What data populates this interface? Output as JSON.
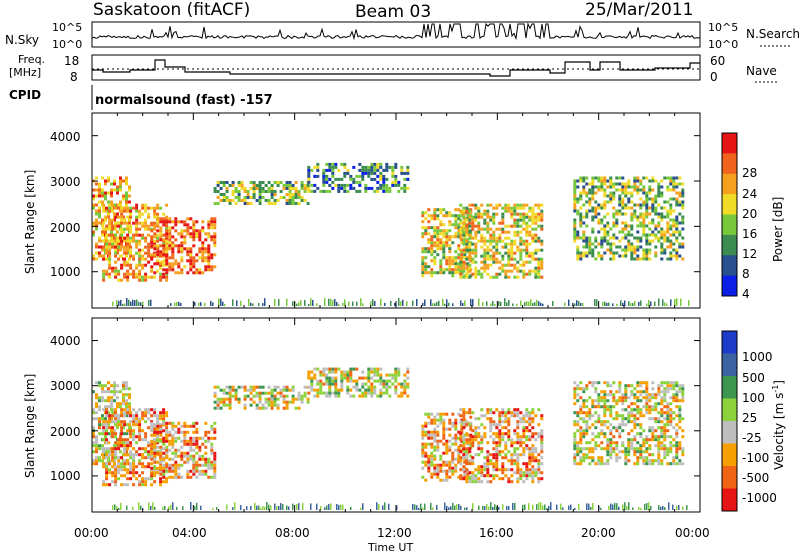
{
  "header": {
    "station": "Saskatoon (fitACF)",
    "beam": "Beam 03",
    "date": "25/Mar/2011"
  },
  "noise_panel": {
    "left_label": "N.Sky",
    "right_label": "N.Search",
    "left_ticks": [
      "10^5",
      "10^0"
    ],
    "right_ticks": [
      "10^5",
      "10^0"
    ]
  },
  "freq_panel": {
    "left_label_1": "Freq.",
    "left_label_2": "[MHz]",
    "right_label": "Nave",
    "left_ticks": [
      "18",
      "8"
    ],
    "right_ticks": [
      "60",
      "0"
    ]
  },
  "cpid": {
    "label": "CPID",
    "mode": "normalsound (fast) -157"
  },
  "chart_data": [
    {
      "type": "heatmap",
      "name": "power",
      "ylabel": "Slant Range [km]",
      "yticks": [
        "1000",
        "2000",
        "3000",
        "4000"
      ],
      "ylim": [
        200,
        4500
      ],
      "colorbar": {
        "label": "Power [dB]",
        "ticks": [
          "4",
          "8",
          "12",
          "16",
          "20",
          "24",
          "28"
        ],
        "colors": [
          "#0a1ee6",
          "#28508c",
          "#3c8c50",
          "#78c83c",
          "#f0dc28",
          "#f5a01e",
          "#f0641e",
          "#e61414"
        ]
      },
      "echo_regions": [
        {
          "t0": 0.0,
          "t1": 1.5,
          "r0": 1300,
          "r1": 3100,
          "level": 5
        },
        {
          "t0": 0.4,
          "t1": 3.0,
          "r0": 800,
          "r1": 2500,
          "level": 5
        },
        {
          "t0": 2.3,
          "t1": 4.8,
          "r0": 1000,
          "r1": 2200,
          "level": 6
        },
        {
          "t0": 4.8,
          "t1": 8.5,
          "r0": 2500,
          "r1": 3000,
          "level": 3
        },
        {
          "t0": 8.5,
          "t1": 12.5,
          "r0": 2800,
          "r1": 3400,
          "level": 2
        },
        {
          "t0": 13.0,
          "t1": 15.0,
          "r0": 900,
          "r1": 2400,
          "level": 4
        },
        {
          "t0": 14.5,
          "t1": 17.8,
          "r0": 900,
          "r1": 2500,
          "level": 4
        },
        {
          "t0": 19.0,
          "t1": 23.3,
          "r0": 1300,
          "r1": 3100,
          "level": 3
        }
      ]
    },
    {
      "type": "heatmap",
      "name": "velocity",
      "ylabel": "Slant Range [km]",
      "yticks": [
        "1000",
        "2000",
        "3000",
        "4000"
      ],
      "ylim": [
        200,
        4500
      ],
      "xlabel": "Time UT",
      "xticks": [
        "00:00",
        "04:00",
        "08:00",
        "12:00",
        "16:00",
        "20:00",
        "00:00"
      ],
      "xlim": [
        0,
        24
      ],
      "colorbar": {
        "label": "Velocity [m s",
        "label_sup": "-1",
        "label_end": "]",
        "ticks": [
          "1000",
          "500",
          "100",
          "25",
          "-25",
          "-100",
          "-500",
          "-1000"
        ],
        "colors": [
          "#1e3cc8",
          "#3c64a0",
          "#3c9650",
          "#8cd23c",
          "#bebebe",
          "#f5a000",
          "#f06414",
          "#e61414"
        ]
      },
      "echo_regions": [
        {
          "t0": 0.0,
          "t1": 1.5,
          "r0": 1300,
          "r1": 3100,
          "level": 4
        },
        {
          "t0": 0.4,
          "t1": 3.0,
          "r0": 800,
          "r1": 2500,
          "level": 5
        },
        {
          "t0": 2.3,
          "t1": 4.8,
          "r0": 1000,
          "r1": 2200,
          "level": 5
        },
        {
          "t0": 4.8,
          "t1": 8.5,
          "r0": 2500,
          "r1": 3000,
          "level": 4
        },
        {
          "t0": 8.5,
          "t1": 12.5,
          "r0": 2800,
          "r1": 3400,
          "level": 4
        },
        {
          "t0": 13.0,
          "t1": 15.0,
          "r0": 900,
          "r1": 2400,
          "level": 5
        },
        {
          "t0": 14.5,
          "t1": 17.8,
          "r0": 900,
          "r1": 2500,
          "level": 5
        },
        {
          "t0": 19.0,
          "t1": 23.3,
          "r0": 1300,
          "r1": 3100,
          "level": 4
        }
      ]
    }
  ]
}
